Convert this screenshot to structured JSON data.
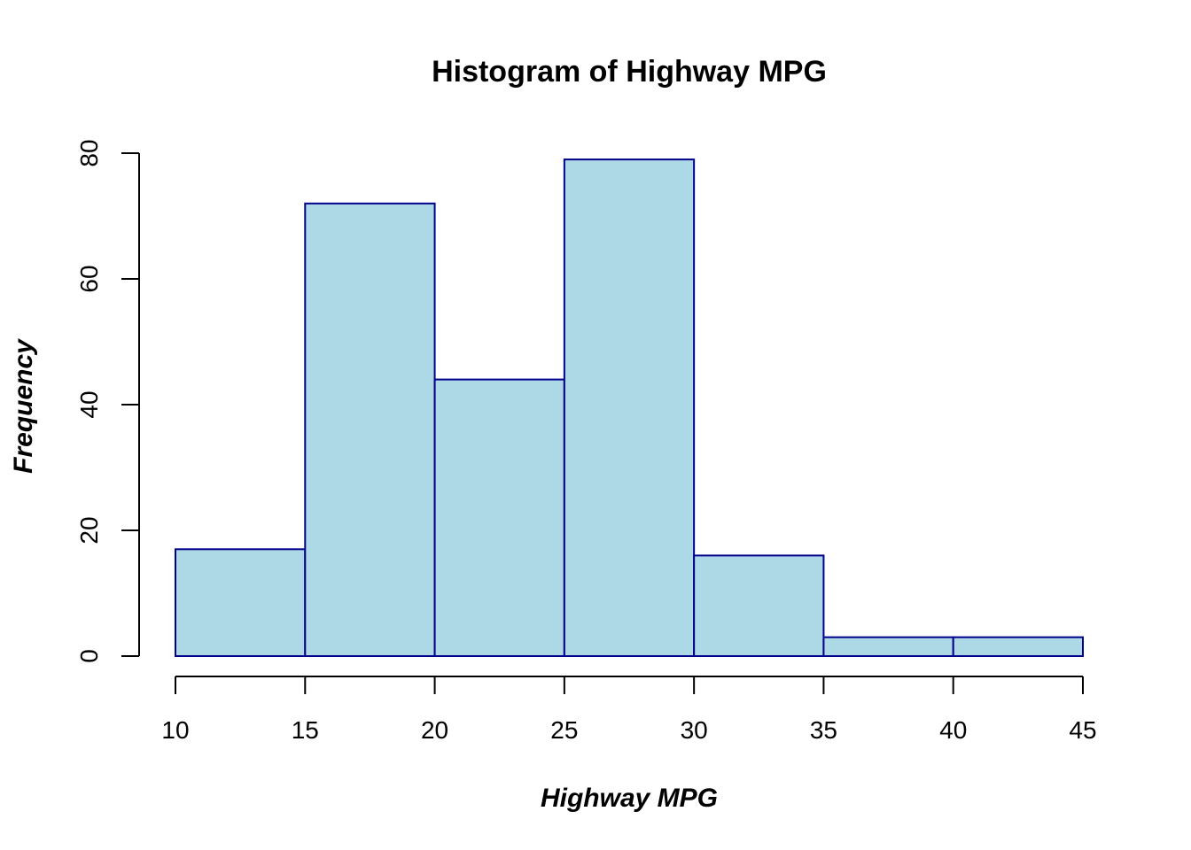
{
  "chart_data": {
    "type": "bar",
    "title": "Histogram of Highway MPG",
    "xlabel": "Highway MPG",
    "ylabel": "Frequency",
    "bins": [
      {
        "from": 10,
        "to": 15,
        "count": 17
      },
      {
        "from": 15,
        "to": 20,
        "count": 72
      },
      {
        "from": 20,
        "to": 25,
        "count": 44
      },
      {
        "from": 25,
        "to": 30,
        "count": 79
      },
      {
        "from": 30,
        "to": 35,
        "count": 16
      },
      {
        "from": 35,
        "to": 40,
        "count": 3
      },
      {
        "from": 40,
        "to": 45,
        "count": 3
      }
    ],
    "xlim": [
      10,
      45
    ],
    "ylim": [
      0,
      80
    ],
    "x_ticks": [
      "10",
      "15",
      "20",
      "25",
      "30",
      "35",
      "40",
      "45"
    ],
    "y_ticks": [
      "0",
      "20",
      "40",
      "60",
      "80"
    ],
    "grid": false,
    "legend": "none",
    "colors": {
      "fill": "#ADD8E6",
      "border": "#00008B"
    }
  }
}
